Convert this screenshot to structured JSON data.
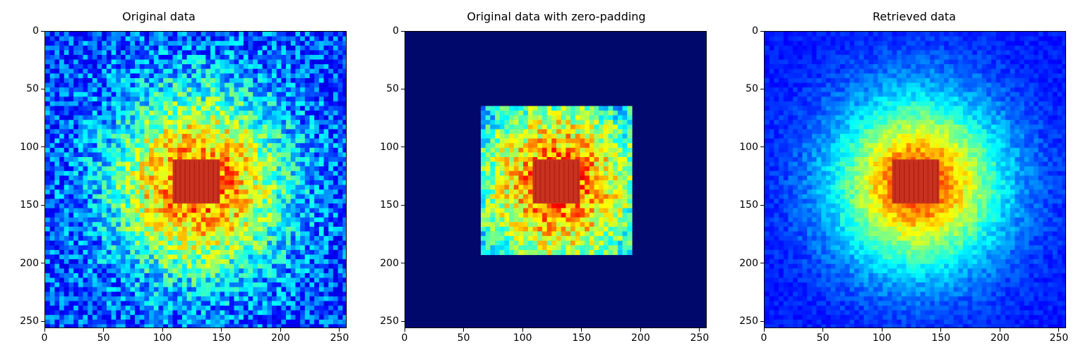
{
  "chart_data": [
    {
      "type": "heatmap",
      "title": "Original data",
      "xlim": [
        0,
        256
      ],
      "ylim": [
        256,
        0
      ],
      "xticks": [
        0,
        50,
        100,
        150,
        200,
        250
      ],
      "yticks": [
        0,
        50,
        100,
        150,
        200,
        250
      ],
      "colormap": "jet",
      "background_color": "#1a3fcf",
      "central_square": {
        "x_range": [
          108,
          148
        ],
        "y_range": [
          110,
          148
        ],
        "color": "#c8321e"
      },
      "data_region": {
        "x_range": [
          0,
          256
        ],
        "y_range": [
          0,
          256
        ]
      }
    },
    {
      "type": "heatmap",
      "title": "Original data with zero-padding",
      "xlim": [
        0,
        256
      ],
      "ylim": [
        256,
        0
      ],
      "xticks": [
        0,
        50,
        100,
        150,
        200,
        250
      ],
      "yticks": [
        0,
        50,
        100,
        150,
        200,
        250
      ],
      "colormap": "jet",
      "background_color": "#00096b",
      "central_square": {
        "x_range": [
          108,
          148
        ],
        "y_range": [
          110,
          148
        ],
        "color": "#c8321e"
      },
      "data_region": {
        "x_range": [
          64,
          192
        ],
        "y_range": [
          64,
          192
        ]
      }
    },
    {
      "type": "heatmap",
      "title": "Retrieved data",
      "xlim": [
        0,
        256
      ],
      "ylim": [
        256,
        0
      ],
      "xticks": [
        0,
        50,
        100,
        150,
        200,
        250
      ],
      "yticks": [
        0,
        50,
        100,
        150,
        200,
        250
      ],
      "colormap": "jet",
      "background_color": "#0a2ae0",
      "central_square": {
        "x_range": [
          108,
          148
        ],
        "y_range": [
          110,
          148
        ],
        "color": "#c8321e"
      },
      "data_region": {
        "x_range": [
          0,
          256
        ],
        "y_range": [
          0,
          256
        ]
      }
    }
  ]
}
